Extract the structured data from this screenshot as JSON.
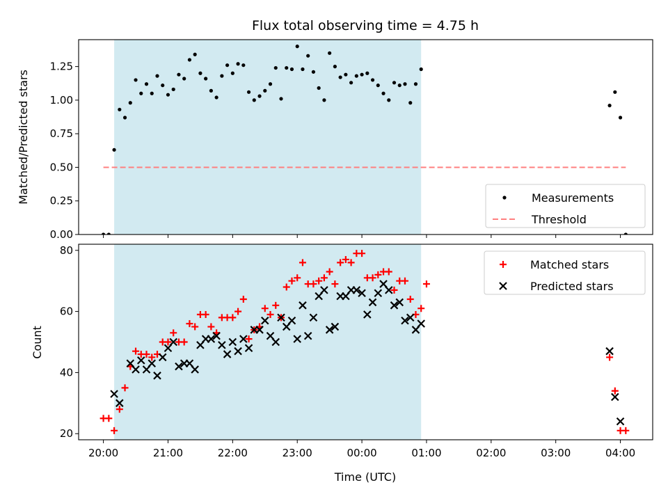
{
  "chart_data": [
    {
      "type": "scatter",
      "title": "Flux total observing time = 4.75 h",
      "xlabel": "",
      "ylabel": "Matched/Predicted stars",
      "ylim": [
        0,
        1.45
      ],
      "yticks": [
        "0.00",
        "0.25",
        "0.50",
        "0.75",
        "1.00",
        "1.25"
      ],
      "xlim": [
        "19:37",
        "04:30"
      ],
      "shaded_span": {
        "start": "20:10",
        "end": "00:55",
        "color": "#add8e6"
      },
      "grid": false,
      "legend": "lower right",
      "series": [
        {
          "name": "Measurements",
          "marker": "dot",
          "color": "#000000",
          "points": [
            [
              "20:00",
              0.0
            ],
            [
              "20:05",
              0.0
            ],
            [
              "20:10",
              0.63
            ],
            [
              "20:15",
              0.93
            ],
            [
              "20:20",
              0.87
            ],
            [
              "20:25",
              0.98
            ],
            [
              "20:30",
              1.15
            ],
            [
              "20:35",
              1.05
            ],
            [
              "20:40",
              1.12
            ],
            [
              "20:45",
              1.05
            ],
            [
              "20:50",
              1.18
            ],
            [
              "20:55",
              1.11
            ],
            [
              "21:00",
              1.04
            ],
            [
              "21:05",
              1.08
            ],
            [
              "21:10",
              1.19
            ],
            [
              "21:15",
              1.16
            ],
            [
              "21:20",
              1.3
            ],
            [
              "21:25",
              1.34
            ],
            [
              "21:30",
              1.2
            ],
            [
              "21:35",
              1.16
            ],
            [
              "21:40",
              1.07
            ],
            [
              "21:45",
              1.02
            ],
            [
              "21:50",
              1.18
            ],
            [
              "21:55",
              1.26
            ],
            [
              "22:00",
              1.2
            ],
            [
              "22:05",
              1.27
            ],
            [
              "22:10",
              1.26
            ],
            [
              "22:15",
              1.06
            ],
            [
              "22:20",
              1.0
            ],
            [
              "22:25",
              1.03
            ],
            [
              "22:30",
              1.07
            ],
            [
              "22:35",
              1.12
            ],
            [
              "22:40",
              1.24
            ],
            [
              "22:45",
              1.01
            ],
            [
              "22:50",
              1.24
            ],
            [
              "22:55",
              1.23
            ],
            [
              "23:00",
              1.4
            ],
            [
              "23:05",
              1.23
            ],
            [
              "23:10",
              1.33
            ],
            [
              "23:15",
              1.21
            ],
            [
              "23:20",
              1.09
            ],
            [
              "23:25",
              1.0
            ],
            [
              "23:30",
              1.35
            ],
            [
              "23:35",
              1.25
            ],
            [
              "23:40",
              1.17
            ],
            [
              "23:45",
              1.19
            ],
            [
              "23:50",
              1.13
            ],
            [
              "23:55",
              1.18
            ],
            [
              "00:00",
              1.19
            ],
            [
              "00:05",
              1.2
            ],
            [
              "00:10",
              1.15
            ],
            [
              "00:15",
              1.11
            ],
            [
              "00:20",
              1.05
            ],
            [
              "00:25",
              1.0
            ],
            [
              "00:30",
              1.13
            ],
            [
              "00:35",
              1.11
            ],
            [
              "00:40",
              1.12
            ],
            [
              "00:45",
              0.98
            ],
            [
              "00:50",
              1.12
            ],
            [
              "00:55",
              1.23
            ],
            [
              "03:50",
              0.96
            ],
            [
              "03:55",
              1.06
            ],
            [
              "04:00",
              0.87
            ],
            [
              "04:05",
              0.0
            ]
          ]
        },
        {
          "name": "Threshold",
          "marker": "dashed-line",
          "color": "#ff7f7f",
          "points": [
            [
              "20:00",
              0.5
            ],
            [
              "04:05",
              0.5
            ]
          ]
        }
      ]
    },
    {
      "type": "scatter",
      "title": "",
      "xlabel": "Time (UTC)",
      "ylabel": "Count",
      "ylim": [
        18,
        82
      ],
      "yticks": [
        "20",
        "40",
        "60",
        "80"
      ],
      "xlim": [
        "19:37",
        "04:30"
      ],
      "xticks": [
        "20:00",
        "21:00",
        "22:00",
        "23:00",
        "00:00",
        "01:00",
        "02:00",
        "03:00",
        "04:00"
      ],
      "shaded_span": {
        "start": "20:10",
        "end": "00:55",
        "color": "#add8e6"
      },
      "grid": false,
      "legend": "upper right",
      "series": [
        {
          "name": "Matched stars",
          "marker": "plus",
          "color": "#ff0000",
          "points": [
            [
              "20:00",
              25
            ],
            [
              "20:05",
              25
            ],
            [
              "20:10",
              21
            ],
            [
              "20:15",
              28
            ],
            [
              "20:20",
              35
            ],
            [
              "20:25",
              42
            ],
            [
              "20:30",
              47
            ],
            [
              "20:35",
              46
            ],
            [
              "20:40",
              46
            ],
            [
              "20:45",
              45
            ],
            [
              "20:50",
              46
            ],
            [
              "20:55",
              50
            ],
            [
              "21:00",
              50
            ],
            [
              "21:05",
              53
            ],
            [
              "21:10",
              50
            ],
            [
              "21:15",
              50
            ],
            [
              "21:20",
              56
            ],
            [
              "21:25",
              55
            ],
            [
              "21:30",
              59
            ],
            [
              "21:35",
              59
            ],
            [
              "21:40",
              55
            ],
            [
              "21:45",
              53
            ],
            [
              "21:50",
              58
            ],
            [
              "21:55",
              58
            ],
            [
              "22:00",
              58
            ],
            [
              "22:05",
              60
            ],
            [
              "22:10",
              64
            ],
            [
              "22:15",
              51
            ],
            [
              "22:20",
              54
            ],
            [
              "22:25",
              55
            ],
            [
              "22:30",
              61
            ],
            [
              "22:35",
              59
            ],
            [
              "22:40",
              62
            ],
            [
              "22:45",
              58
            ],
            [
              "22:50",
              68
            ],
            [
              "22:55",
              70
            ],
            [
              "23:00",
              71
            ],
            [
              "23:05",
              76
            ],
            [
              "23:10",
              69
            ],
            [
              "23:15",
              69
            ],
            [
              "23:20",
              70
            ],
            [
              "23:25",
              71
            ],
            [
              "23:30",
              73
            ],
            [
              "23:35",
              69
            ],
            [
              "23:40",
              76
            ],
            [
              "23:45",
              77
            ],
            [
              "23:50",
              76
            ],
            [
              "23:55",
              79
            ],
            [
              "00:00",
              79
            ],
            [
              "00:05",
              71
            ],
            [
              "00:10",
              71
            ],
            [
              "00:15",
              72
            ],
            [
              "00:20",
              73
            ],
            [
              "00:25",
              73
            ],
            [
              "00:30",
              67
            ],
            [
              "00:35",
              70
            ],
            [
              "00:40",
              70
            ],
            [
              "00:45",
              64
            ],
            [
              "00:50",
              59
            ],
            [
              "00:55",
              61
            ],
            [
              "01:00",
              69
            ],
            [
              "03:50",
              45
            ],
            [
              "03:55",
              34
            ],
            [
              "04:00",
              21
            ],
            [
              "04:05",
              21
            ]
          ]
        },
        {
          "name": "Predicted stars",
          "marker": "x",
          "color": "#000000",
          "points": [
            [
              "20:10",
              33
            ],
            [
              "20:15",
              30
            ],
            [
              "20:25",
              43
            ],
            [
              "20:30",
              41
            ],
            [
              "20:35",
              44
            ],
            [
              "20:40",
              41
            ],
            [
              "20:45",
              43
            ],
            [
              "20:50",
              39
            ],
            [
              "20:55",
              45
            ],
            [
              "21:00",
              48
            ],
            [
              "21:05",
              50
            ],
            [
              "21:10",
              42
            ],
            [
              "21:15",
              43
            ],
            [
              "21:20",
              43
            ],
            [
              "21:25",
              41
            ],
            [
              "21:30",
              49
            ],
            [
              "21:35",
              51
            ],
            [
              "21:40",
              51
            ],
            [
              "21:45",
              52
            ],
            [
              "21:50",
              49
            ],
            [
              "21:55",
              46
            ],
            [
              "22:00",
              50
            ],
            [
              "22:05",
              47
            ],
            [
              "22:10",
              51
            ],
            [
              "22:15",
              48
            ],
            [
              "22:20",
              54
            ],
            [
              "22:25",
              54
            ],
            [
              "22:30",
              57
            ],
            [
              "22:35",
              52
            ],
            [
              "22:40",
              50
            ],
            [
              "22:45",
              58
            ],
            [
              "22:50",
              55
            ],
            [
              "22:55",
              57
            ],
            [
              "23:00",
              51
            ],
            [
              "23:05",
              62
            ],
            [
              "23:10",
              52
            ],
            [
              "23:15",
              58
            ],
            [
              "23:20",
              65
            ],
            [
              "23:25",
              67
            ],
            [
              "23:30",
              54
            ],
            [
              "23:35",
              55
            ],
            [
              "23:40",
              65
            ],
            [
              "23:45",
              65
            ],
            [
              "23:50",
              67
            ],
            [
              "23:55",
              67
            ],
            [
              "00:00",
              66
            ],
            [
              "00:05",
              59
            ],
            [
              "00:10",
              63
            ],
            [
              "00:15",
              66
            ],
            [
              "00:20",
              69
            ],
            [
              "00:25",
              67
            ],
            [
              "00:30",
              62
            ],
            [
              "00:35",
              63
            ],
            [
              "00:40",
              57
            ],
            [
              "00:45",
              58
            ],
            [
              "00:50",
              54
            ],
            [
              "00:55",
              56
            ],
            [
              "03:50",
              47
            ],
            [
              "03:55",
              32
            ],
            [
              "04:00",
              24
            ]
          ]
        }
      ]
    }
  ]
}
